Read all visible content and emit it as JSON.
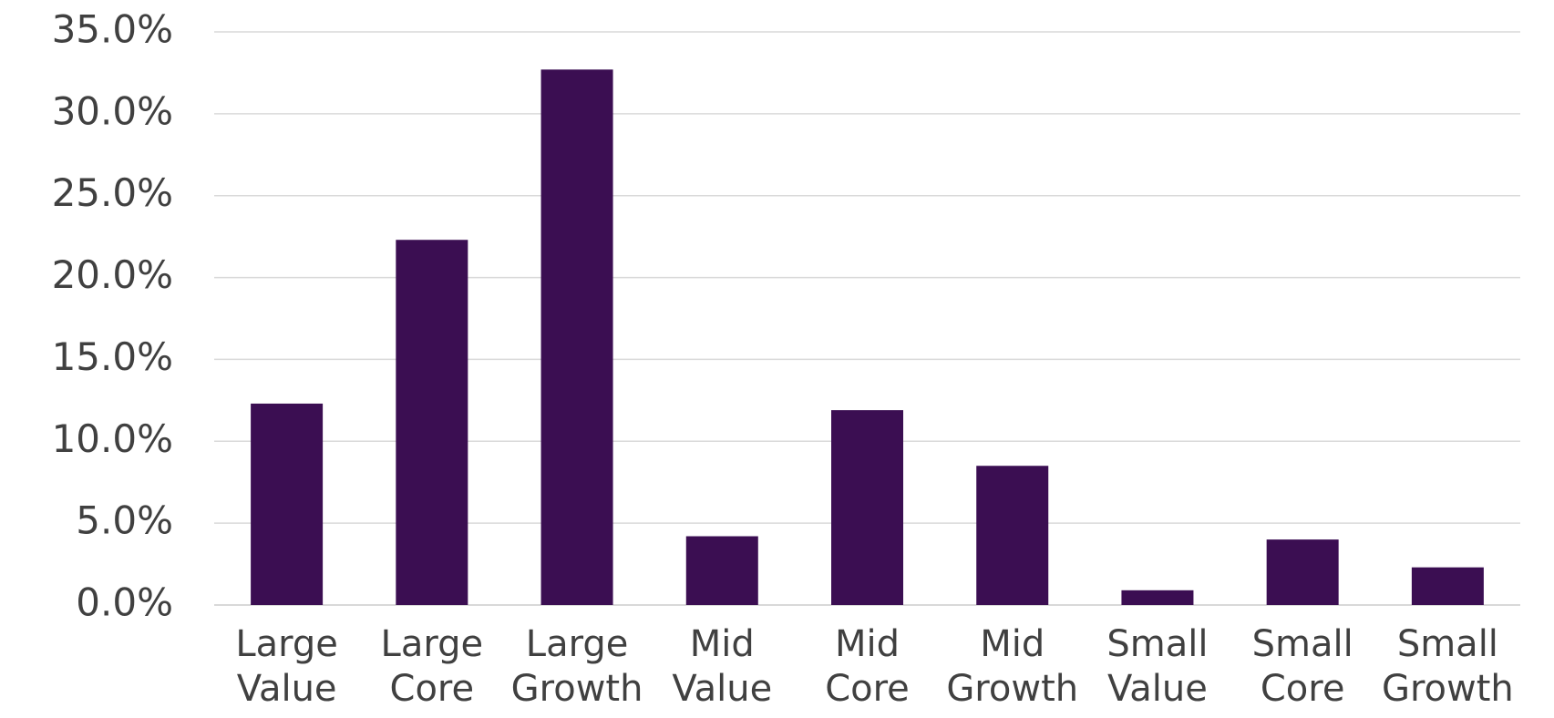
{
  "chart_data": {
    "type": "bar",
    "categories": [
      [
        "Large",
        "Value"
      ],
      [
        "Large",
        "Core"
      ],
      [
        "Large",
        "Growth"
      ],
      [
        "Mid",
        "Value"
      ],
      [
        "Mid",
        "Core"
      ],
      [
        "Mid",
        "Growth"
      ],
      [
        "Small",
        "Value"
      ],
      [
        "Small",
        "Core"
      ],
      [
        "Small",
        "Growth"
      ]
    ],
    "values": [
      12.3,
      22.3,
      32.7,
      4.2,
      11.9,
      8.5,
      0.9,
      4.0,
      2.3
    ],
    "y_ticks": [
      "0.0%",
      "5.0%",
      "10.0%",
      "15.0%",
      "20.0%",
      "25.0%",
      "30.0%",
      "35.0%"
    ],
    "ylim": [
      0,
      35
    ],
    "grid": true,
    "title": "",
    "xlabel": "",
    "ylabel": "",
    "bar_color": "#3b0e52",
    "grid_color": "#d9d9d9",
    "text_color": "#404040"
  }
}
